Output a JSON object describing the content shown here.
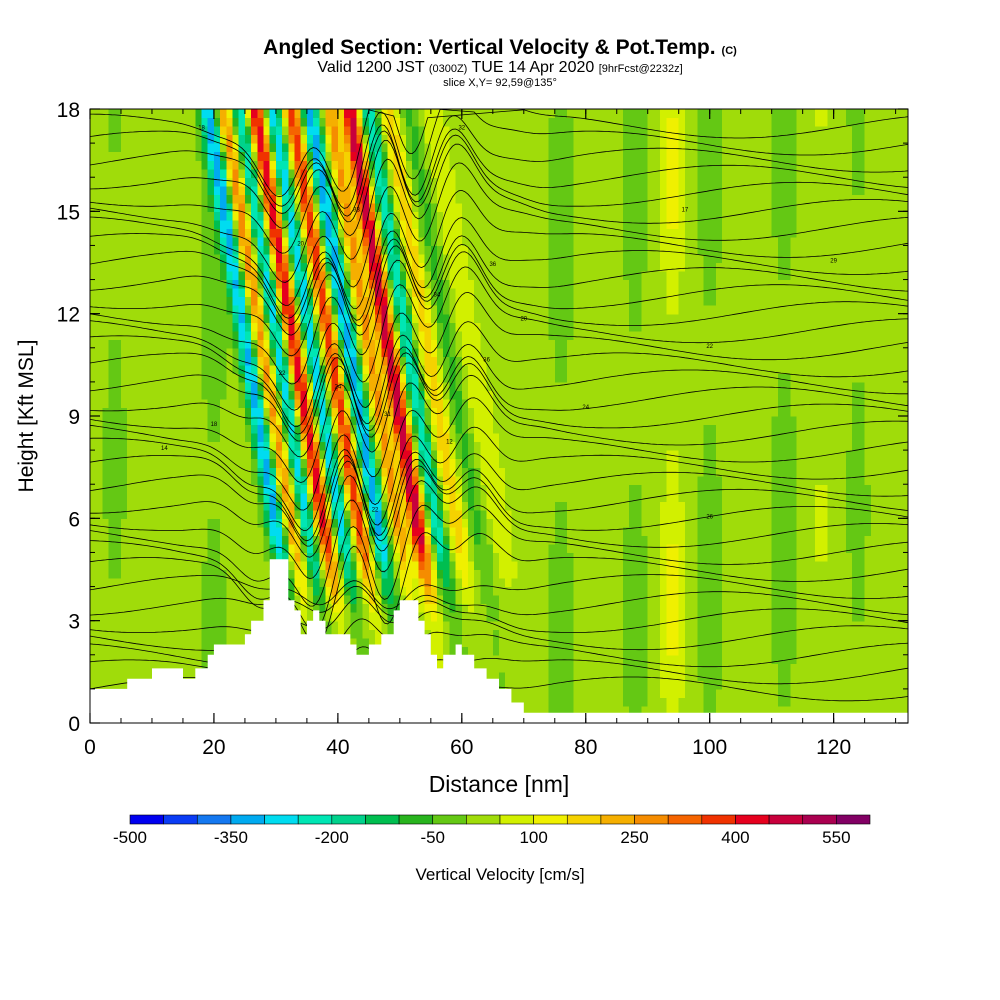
{
  "title": {
    "main": "Angled Section: Vertical Velocity & Pot.Temp.",
    "main_unit": "(C)",
    "valid_prefix": "Valid 1200 JST",
    "valid_z": "(0300Z)",
    "valid_date": "TUE 14 Apr 2020",
    "fcst": "[9hrFcst@2232z]",
    "slice": "slice X,Y= 92,59@135°"
  },
  "chart_data": {
    "type": "heatmap",
    "xlabel": "Distance [nm]",
    "ylabel": "Height [Kft MSL]",
    "xlim": [
      0,
      132
    ],
    "ylim": [
      0,
      18
    ],
    "xticks": [
      0,
      20,
      40,
      60,
      80,
      100,
      120
    ],
    "yticks": [
      0,
      3,
      6,
      9,
      12,
      15,
      18
    ],
    "colorbar": {
      "label": "Vertical Velocity [cm/s]",
      "min": -500,
      "max": 600,
      "step": 50,
      "tick_labels": [
        -500,
        -350,
        -200,
        -50,
        100,
        250,
        400,
        550
      ],
      "colors": [
        "#0000f0",
        "#0a3cf5",
        "#1478f0",
        "#00aaf0",
        "#00dcf0",
        "#00e6b4",
        "#00d28c",
        "#00be50",
        "#28b41e",
        "#64c814",
        "#a0dc0a",
        "#d2f000",
        "#f0f000",
        "#f5d200",
        "#f5af00",
        "#f58c00",
        "#f56400",
        "#f03200",
        "#e6001e",
        "#c8003c",
        "#aa0050",
        "#820064"
      ]
    },
    "terrain": {
      "x": [
        0,
        5,
        6,
        10,
        14,
        15,
        17,
        19,
        20,
        23,
        25,
        26,
        28,
        29,
        31,
        32,
        33,
        34,
        35,
        36,
        37,
        38,
        40,
        42,
        43,
        45,
        47,
        49,
        50,
        52,
        53,
        54,
        55,
        56,
        57,
        59,
        60,
        62,
        64,
        66,
        68,
        70,
        72,
        132
      ],
      "kft": [
        1.0,
        1.0,
        1.3,
        1.6,
        1.6,
        1.3,
        1.6,
        2.0,
        2.3,
        2.3,
        2.6,
        3.0,
        3.6,
        4.8,
        4.8,
        3.6,
        3.3,
        2.6,
        3.0,
        3.3,
        3.0,
        2.6,
        2.6,
        2.3,
        2.0,
        2.3,
        2.6,
        3.3,
        3.6,
        3.6,
        3.0,
        2.6,
        2.0,
        1.6,
        2.0,
        2.3,
        2.0,
        1.6,
        1.3,
        1.0,
        0.6,
        0.3,
        0.3,
        0.3
      ]
    },
    "contour_labels": [
      "18",
      "32",
      "20",
      "33",
      "34",
      "36",
      "20",
      "17",
      "29",
      "22",
      "22",
      "24",
      "31",
      "12",
      "14",
      "18",
      "22",
      "26",
      "36",
      "24"
    ],
    "grid": false,
    "legend": "colorbar-bottom"
  }
}
